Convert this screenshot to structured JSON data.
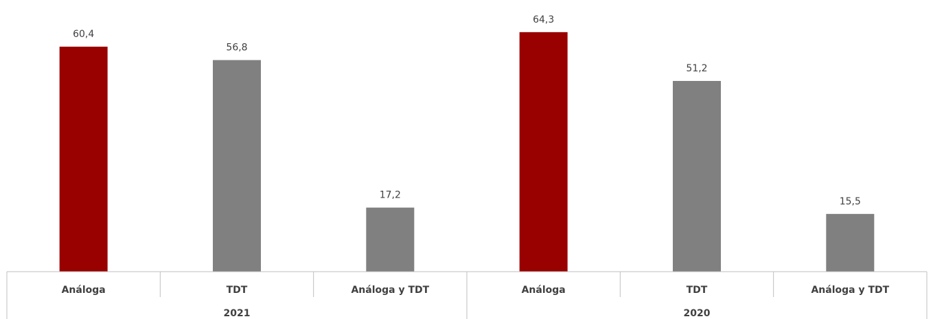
{
  "chart_data": {
    "type": "bar",
    "groups": [
      {
        "label": "2021",
        "categories": [
          "Análoga",
          "TDT",
          "Análoga y TDT"
        ],
        "values": [
          "60,4",
          "56,8",
          "17,2"
        ],
        "numeric": [
          60.4,
          56.8,
          17.2
        ]
      },
      {
        "label": "2020",
        "categories": [
          "Análoga",
          "TDT",
          "Análoga y TDT"
        ],
        "values": [
          "64,3",
          "51,2",
          "15,5"
        ],
        "numeric": [
          64.3,
          51.2,
          15.5
        ]
      }
    ],
    "colors": {
      "highlight": "#990000",
      "default": "#808080"
    },
    "highlight_category": "Análoga",
    "ylim": [
      0,
      70
    ],
    "grid": false,
    "legend": "none"
  }
}
